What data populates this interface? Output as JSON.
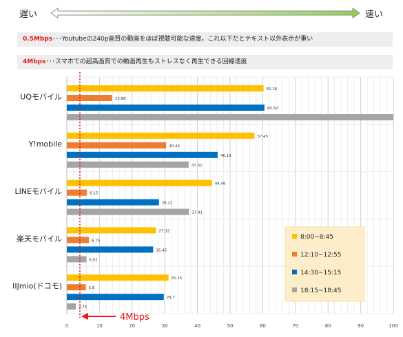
{
  "header": {
    "slow_label": "遅い",
    "fast_label": "速い"
  },
  "notes": [
    {
      "highlight": "0.5Mbps",
      "text": "･･･Youtubeの240p画質の動画をほぼ視聴可能な速度。これ以下だとテキスト以外表示が重い"
    },
    {
      "highlight": "4Mbps",
      "text": "･･･スマホでの超高画質での動画再生もストレスなく再生できる回線速度"
    }
  ],
  "reference_line": {
    "value": 4,
    "label": "4Mbps"
  },
  "colors": {
    "s1": "#ffc000",
    "s2": "#ed7d31",
    "s3": "#0070c0",
    "s4": "#a5a5a5",
    "reference": "#e31a1a",
    "arrow_green": "#92d050",
    "legend_bg": "#fdeec9"
  },
  "chart_data": {
    "type": "bar",
    "orientation": "horizontal",
    "categories": [
      "UQモバイル",
      "Y!mobile",
      "LINEモバイル",
      "楽天モバイル",
      "IIJmio(ドコモ)"
    ],
    "series": [
      {
        "name": "8:00~8:45",
        "values": [
          60.26,
          57.45,
          44.46,
          27.32,
          31.15
        ]
      },
      {
        "name": "12:10~12:55",
        "values": [
          13.88,
          30.43,
          6.15,
          6.75,
          5.8
        ]
      },
      {
        "name": "14:30~15:15",
        "values": [
          60.52,
          46.19,
          28.22,
          26.45,
          29.7
        ]
      },
      {
        "name": "18:15~18:45",
        "values": [
          null,
          37.31,
          37.41,
          6.02,
          2.75
        ]
      }
    ],
    "data_labels": [
      [
        "60.26",
        "13.88",
        "60.52",
        ""
      ],
      [
        "57.45",
        "30.43",
        "46.19",
        "37.31"
      ],
      [
        "44.46",
        "6.15",
        "28.22",
        "37.41"
      ],
      [
        "27.32",
        "6.75",
        "26.45",
        "6.02"
      ],
      [
        "31.15",
        "5.8",
        "29.7",
        "2.75"
      ]
    ],
    "clipped_value": 100,
    "xlim": [
      0,
      100
    ],
    "xticks": [
      0,
      10,
      20,
      30,
      40,
      50,
      60,
      70,
      80,
      90,
      100
    ],
    "grid": true,
    "legend_position": "bottom-right"
  }
}
